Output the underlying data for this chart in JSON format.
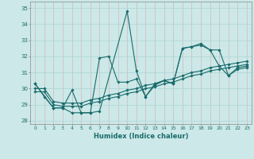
{
  "xlabel": "Humidex (Indice chaleur)",
  "ylabel": "",
  "xlim": [
    -0.5,
    23.5
  ],
  "ylim": [
    27.8,
    35.4
  ],
  "yticks": [
    28,
    29,
    30,
    31,
    32,
    33,
    34,
    35
  ],
  "xticks": [
    0,
    1,
    2,
    3,
    4,
    5,
    6,
    7,
    8,
    9,
    10,
    11,
    12,
    13,
    14,
    15,
    16,
    17,
    18,
    19,
    20,
    21,
    22,
    23
  ],
  "bg_color": "#cce8e8",
  "grid_color": "#afd4d4",
  "line_color": "#1a6b6b",
  "lines": [
    {
      "x": [
        0,
        1,
        2,
        3,
        4,
        5,
        6,
        7,
        10,
        11,
        12,
        13,
        14,
        15,
        16,
        17,
        18,
        19,
        20,
        21,
        22,
        23
      ],
      "y": [
        30.3,
        29.5,
        28.8,
        28.8,
        29.9,
        28.5,
        28.5,
        28.6,
        34.8,
        31.1,
        29.5,
        30.3,
        30.5,
        30.3,
        32.5,
        32.6,
        32.8,
        32.4,
        31.4,
        30.8,
        31.3,
        31.4
      ]
    },
    {
      "x": [
        0,
        2,
        3,
        4,
        5,
        6,
        7,
        8,
        9,
        10,
        11,
        12,
        13,
        14,
        15,
        16,
        17,
        18,
        19,
        20,
        21,
        22,
        23
      ],
      "y": [
        30.3,
        28.8,
        28.8,
        28.5,
        28.5,
        28.5,
        31.9,
        32.0,
        30.4,
        30.4,
        30.6,
        29.5,
        30.2,
        30.5,
        30.3,
        32.5,
        32.6,
        32.7,
        32.4,
        32.4,
        30.8,
        31.2,
        31.3
      ]
    },
    {
      "x": [
        0,
        1,
        2,
        3,
        4,
        5,
        6,
        7,
        8,
        9,
        10,
        11,
        12,
        13,
        14,
        15,
        16,
        17,
        18,
        19,
        20,
        21,
        22,
        23
      ],
      "y": [
        30.0,
        30.0,
        29.2,
        29.1,
        29.1,
        29.1,
        29.3,
        29.4,
        29.6,
        29.7,
        29.9,
        30.0,
        30.2,
        30.3,
        30.5,
        30.6,
        30.8,
        31.0,
        31.1,
        31.3,
        31.4,
        31.5,
        31.6,
        31.7
      ]
    },
    {
      "x": [
        0,
        1,
        2,
        3,
        4,
        5,
        6,
        7,
        8,
        9,
        10,
        11,
        12,
        13,
        14,
        15,
        16,
        17,
        18,
        19,
        20,
        21,
        22,
        23
      ],
      "y": [
        29.8,
        29.8,
        29.0,
        28.9,
        28.9,
        28.9,
        29.1,
        29.2,
        29.4,
        29.5,
        29.7,
        29.8,
        30.0,
        30.1,
        30.3,
        30.4,
        30.6,
        30.8,
        30.9,
        31.1,
        31.2,
        31.3,
        31.4,
        31.5
      ]
    }
  ]
}
